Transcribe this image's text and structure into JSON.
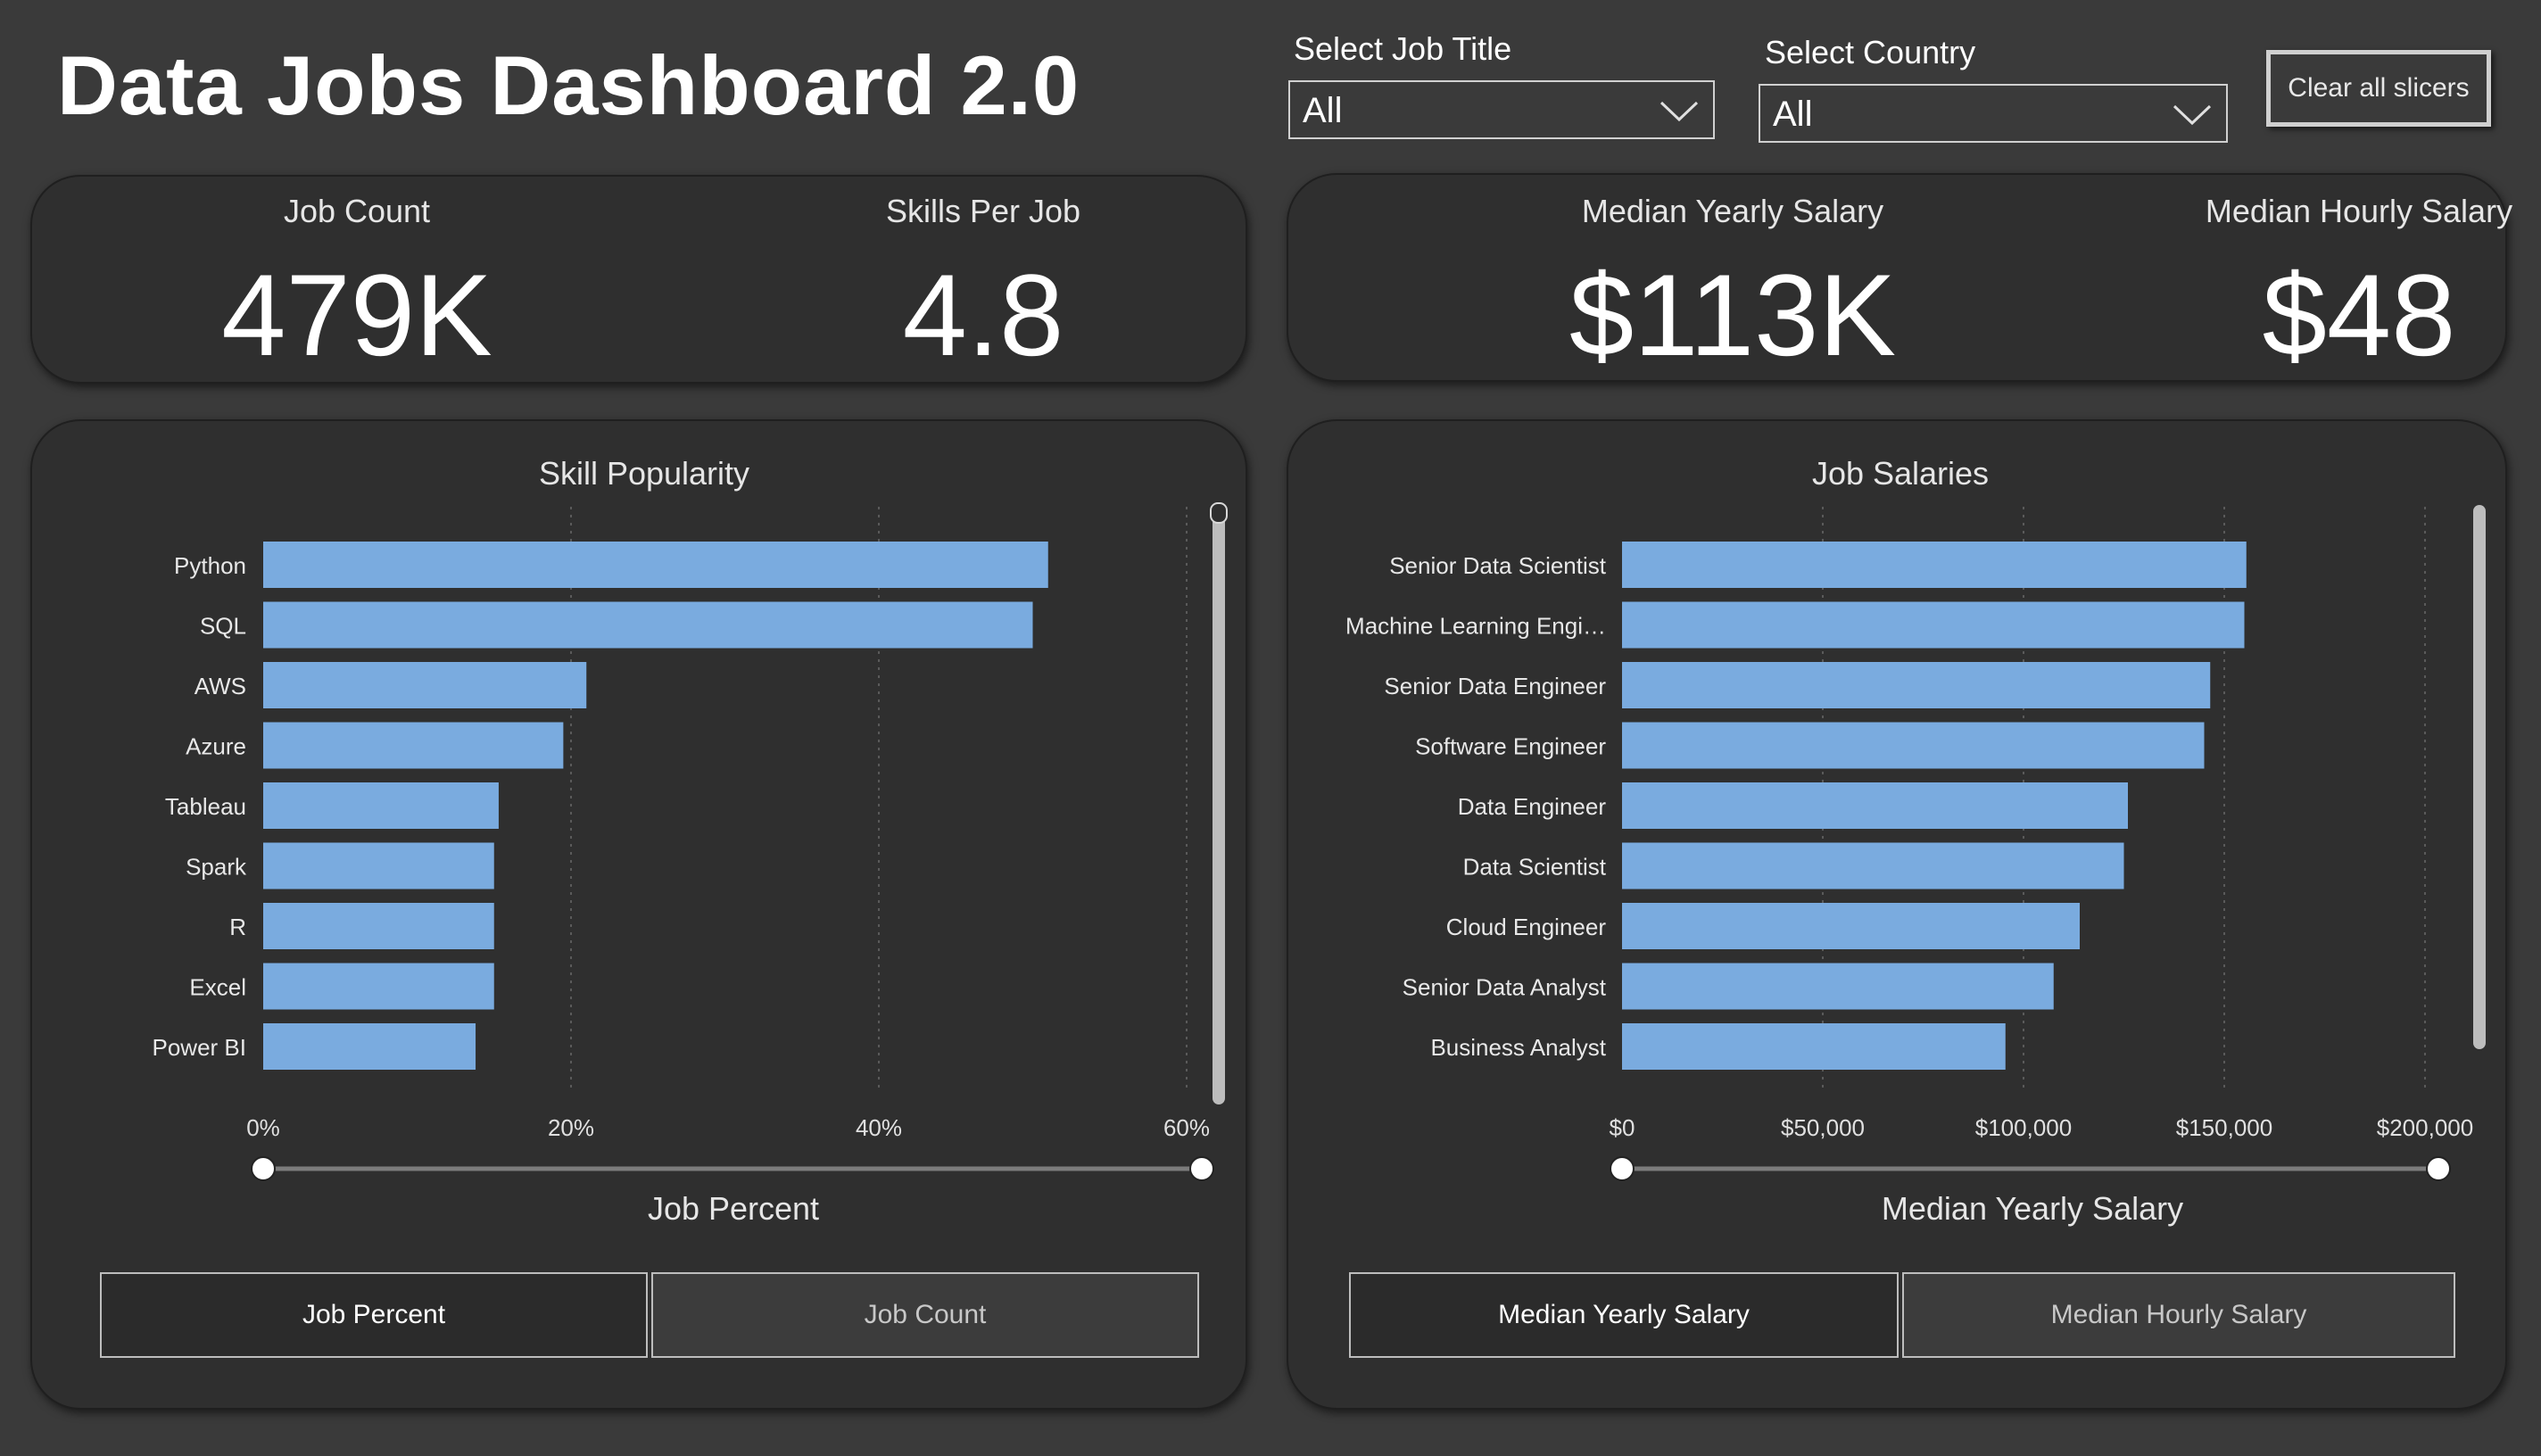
{
  "header": {
    "title": "Data Jobs Dashboard 2.0"
  },
  "slicers": {
    "job_title_label": "Select Job Title",
    "job_title_value": "All",
    "country_label": "Select Country",
    "country_value": "All",
    "clear_label": "Clear all slicers"
  },
  "kpis": {
    "job_count_label": "Job Count",
    "job_count_value": "479K",
    "skills_label": "Skills Per Job",
    "skills_value": "4.8",
    "yearly_label": "Median Yearly Salary",
    "yearly_value": "$113K",
    "hourly_label": "Median Hourly Salary",
    "hourly_value": "$48"
  },
  "skill_chart": {
    "title": "Skill Popularity",
    "axis_title": "Job Percent",
    "toggle_active": "Job Percent",
    "toggle_inactive": "Job Count"
  },
  "salary_chart": {
    "title": "Job Salaries",
    "axis_title": "Median Yearly Salary",
    "toggle_active": "Median Yearly Salary",
    "toggle_inactive": "Median Hourly Salary"
  },
  "colors": {
    "bar": "#7aabdf",
    "background": "#3a3a3a",
    "card": "#2f2f2f"
  },
  "chart_data": [
    {
      "type": "bar",
      "orientation": "horizontal",
      "title": "Skill Popularity",
      "xlabel": "Job Percent",
      "categories": [
        "Python",
        "SQL",
        "AWS",
        "Azure",
        "Tableau",
        "Spark",
        "R",
        "Excel",
        "Power BI"
      ],
      "values": [
        51,
        50,
        21,
        19.5,
        15.3,
        15,
        15,
        15,
        13.8
      ],
      "unit": "%",
      "xlim": [
        0,
        60
      ],
      "ticks": [
        "0%",
        "20%",
        "40%",
        "60%"
      ],
      "tick_values": [
        0,
        20,
        40,
        60
      ],
      "grid": true
    },
    {
      "type": "bar",
      "orientation": "horizontal",
      "title": "Job Salaries",
      "xlabel": "Median Yearly Salary",
      "categories": [
        "Senior Data Scientist",
        "Machine Learning Engi…",
        "Senior Data Engineer",
        "Software Engineer",
        "Data Engineer",
        "Data Scientist",
        "Cloud Engineer",
        "Senior Data Analyst",
        "Business Analyst"
      ],
      "values": [
        155500,
        155000,
        146500,
        145000,
        126000,
        125000,
        114000,
        107500,
        95500
      ],
      "xlim": [
        0,
        200000
      ],
      "ticks": [
        "$0",
        "$50,000",
        "$100,000",
        "$150,000",
        "$200,000"
      ],
      "tick_values": [
        0,
        50000,
        100000,
        150000,
        200000
      ],
      "grid": true
    }
  ]
}
